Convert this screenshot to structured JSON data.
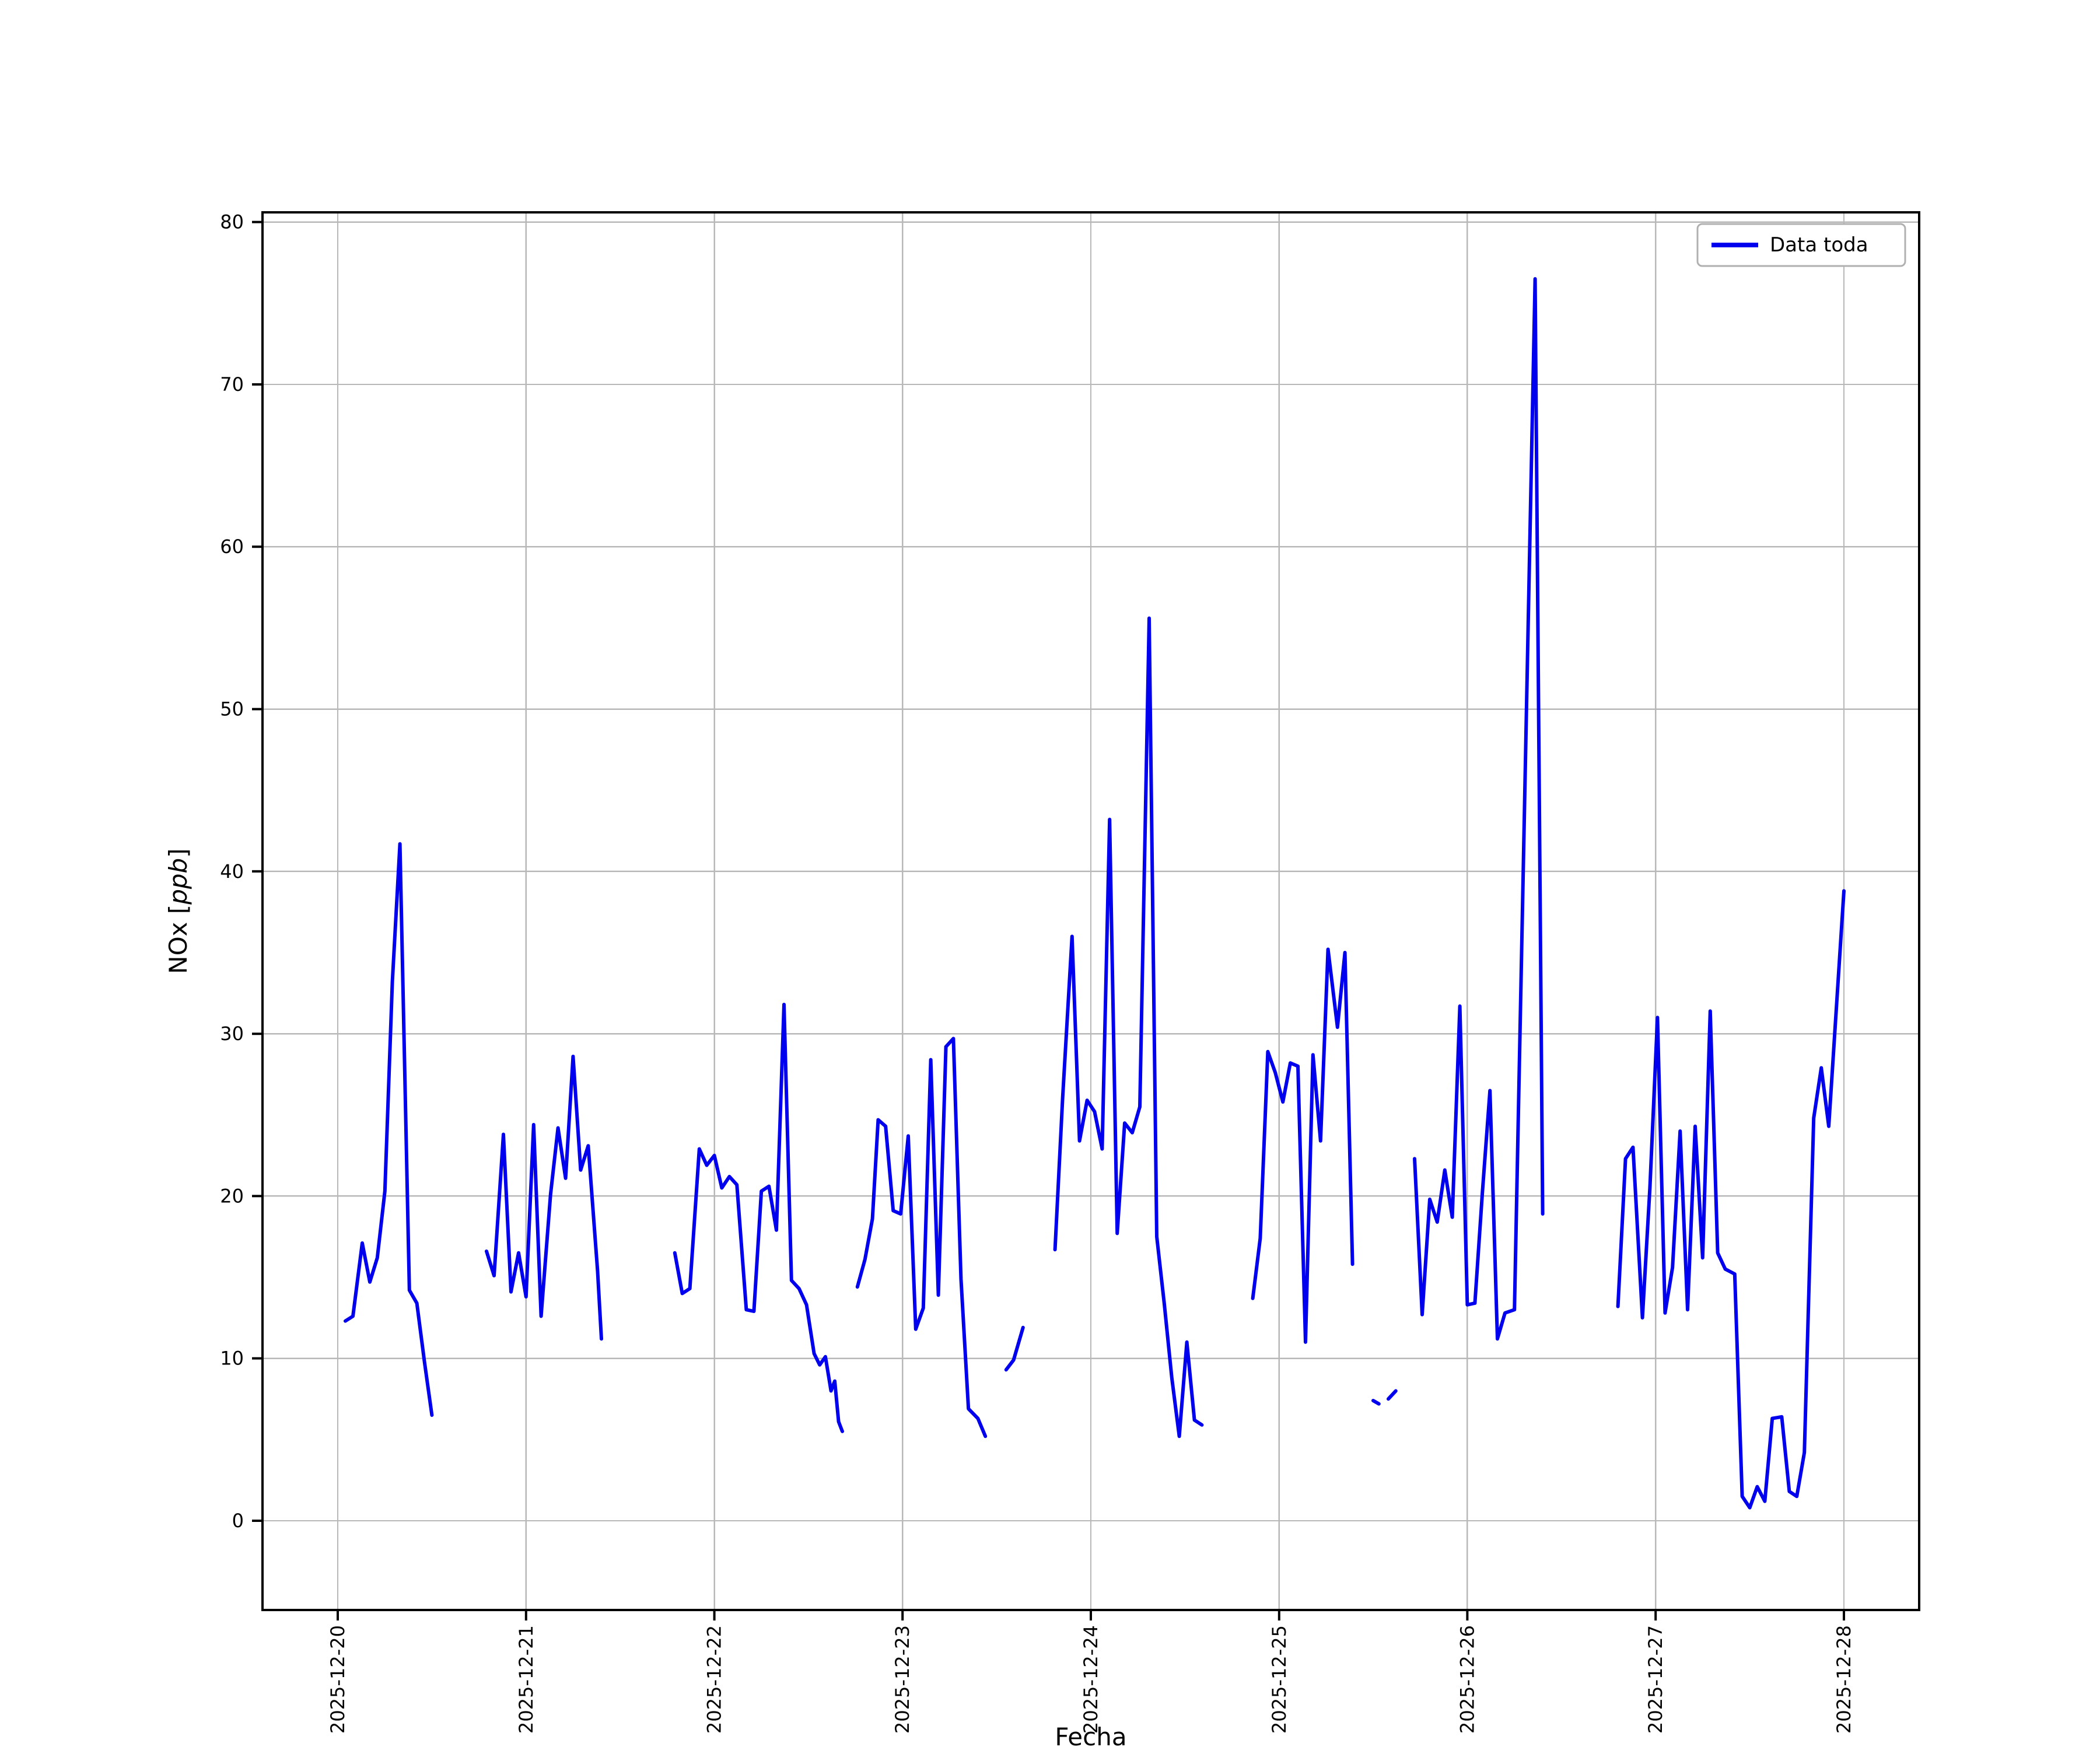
{
  "figure": {
    "background": "#ffffff",
    "frame_color": "#000000"
  },
  "chart_data": {
    "type": "line",
    "title": "",
    "xlabel": "Fecha",
    "ylabel": {
      "prefix": "NOx [",
      "unit": "ppb",
      "suffix": "]",
      "unit_style": "italic"
    },
    "x_unit": "days since 2025-12-20 00:00",
    "xlim": [
      -0.4,
      8.4
    ],
    "ylim": [
      -5.5,
      80.6
    ],
    "x_ticks": [
      {
        "pos": 0,
        "label": "2025-12-20"
      },
      {
        "pos": 1,
        "label": "2025-12-21"
      },
      {
        "pos": 2,
        "label": "2025-12-22"
      },
      {
        "pos": 3,
        "label": "2025-12-23"
      },
      {
        "pos": 4,
        "label": "2025-12-24"
      },
      {
        "pos": 5,
        "label": "2025-12-25"
      },
      {
        "pos": 6,
        "label": "2025-12-26"
      },
      {
        "pos": 7,
        "label": "2025-12-27"
      },
      {
        "pos": 8,
        "label": "2025-12-28"
      }
    ],
    "y_ticks": [
      0,
      10,
      20,
      30,
      40,
      50,
      60,
      70,
      80
    ],
    "grid": {
      "show": true,
      "color": "#b8b8b8"
    },
    "legend": {
      "label": "Data toda",
      "position": "upper-right",
      "border_color": "#b0b0b0",
      "background": "#ffffff"
    },
    "series": [
      {
        "name": "Data toda",
        "color": "#0000ee",
        "line_width": 3,
        "segments": [
          [
            [
              0.04,
              12.3
            ],
            [
              0.08,
              12.6
            ],
            [
              0.13,
              17.1
            ],
            [
              0.17,
              14.7
            ],
            [
              0.21,
              16.2
            ],
            [
              0.25,
              20.3
            ],
            [
              0.29,
              33.2
            ],
            [
              0.33,
              41.7
            ],
            [
              0.38,
              14.2
            ],
            [
              0.42,
              13.4
            ],
            [
              0.46,
              9.8
            ],
            [
              0.5,
              6.5
            ]
          ],
          [
            [
              0.79,
              16.6
            ],
            [
              0.83,
              15.1
            ],
            [
              0.88,
              23.8
            ],
            [
              0.92,
              14.1
            ],
            [
              0.96,
              16.5
            ],
            [
              1.0,
              13.8
            ],
            [
              1.04,
              24.4
            ],
            [
              1.08,
              12.6
            ],
            [
              1.13,
              20.1
            ],
            [
              1.17,
              24.2
            ],
            [
              1.21,
              21.1
            ],
            [
              1.25,
              28.6
            ],
            [
              1.29,
              21.6
            ],
            [
              1.33,
              23.1
            ],
            [
              1.38,
              15.4
            ],
            [
              1.4,
              11.2
            ]
          ],
          [
            [
              1.79,
              16.5
            ],
            [
              1.83,
              14.0
            ],
            [
              1.87,
              14.3
            ],
            [
              1.92,
              22.9
            ],
            [
              1.96,
              21.9
            ],
            [
              2.0,
              22.5
            ],
            [
              2.04,
              20.5
            ],
            [
              2.08,
              21.2
            ],
            [
              2.12,
              20.7
            ],
            [
              2.17,
              13.0
            ],
            [
              2.21,
              12.9
            ],
            [
              2.25,
              20.3
            ],
            [
              2.29,
              20.6
            ],
            [
              2.33,
              17.9
            ],
            [
              2.37,
              31.8
            ],
            [
              2.41,
              14.8
            ],
            [
              2.45,
              14.3
            ],
            [
              2.49,
              13.3
            ],
            [
              2.53,
              10.3
            ],
            [
              2.56,
              9.6
            ],
            [
              2.59,
              10.1
            ],
            [
              2.62,
              8.0
            ],
            [
              2.64,
              8.6
            ],
            [
              2.66,
              6.1
            ],
            [
              2.68,
              5.5
            ]
          ],
          [
            [
              2.76,
              14.4
            ],
            [
              2.8,
              16.1
            ],
            [
              2.84,
              18.6
            ],
            [
              2.87,
              24.7
            ],
            [
              2.91,
              24.3
            ],
            [
              2.95,
              19.1
            ],
            [
              2.99,
              18.9
            ],
            [
              3.03,
              23.7
            ],
            [
              3.07,
              11.8
            ],
            [
              3.11,
              13.1
            ],
            [
              3.15,
              28.4
            ],
            [
              3.19,
              13.9
            ],
            [
              3.23,
              29.2
            ],
            [
              3.27,
              29.7
            ],
            [
              3.31,
              14.9
            ],
            [
              3.35,
              6.9
            ],
            [
              3.4,
              6.3
            ],
            [
              3.44,
              5.2
            ]
          ],
          [
            [
              3.55,
              9.3
            ],
            [
              3.59,
              9.9
            ],
            [
              3.64,
              11.9
            ]
          ],
          [
            [
              3.81,
              16.7
            ],
            [
              3.85,
              26.0
            ],
            [
              3.9,
              36.0
            ],
            [
              3.94,
              23.4
            ],
            [
              3.98,
              25.9
            ],
            [
              4.02,
              25.2
            ],
            [
              4.06,
              22.9
            ],
            [
              4.1,
              43.2
            ],
            [
              4.14,
              17.7
            ],
            [
              4.18,
              24.5
            ],
            [
              4.22,
              23.9
            ],
            [
              4.26,
              25.5
            ],
            [
              4.31,
              55.6
            ],
            [
              4.35,
              17.5
            ],
            [
              4.39,
              13.4
            ],
            [
              4.43,
              8.8
            ],
            [
              4.47,
              5.2
            ],
            [
              4.51,
              11.0
            ],
            [
              4.55,
              6.2
            ],
            [
              4.59,
              5.9
            ]
          ],
          [
            [
              4.86,
              13.7
            ],
            [
              4.9,
              17.4
            ],
            [
              4.94,
              28.9
            ],
            [
              4.98,
              27.6
            ],
            [
              5.02,
              25.8
            ],
            [
              5.06,
              28.2
            ],
            [
              5.1,
              28.0
            ],
            [
              5.14,
              11.0
            ],
            [
              5.18,
              28.7
            ],
            [
              5.22,
              23.4
            ],
            [
              5.26,
              35.2
            ],
            [
              5.31,
              30.4
            ],
            [
              5.35,
              35.0
            ],
            [
              5.39,
              15.8
            ]
          ],
          [
            [
              5.5,
              7.4
            ],
            [
              5.53,
              7.2
            ]
          ],
          [
            [
              5.58,
              7.5
            ],
            [
              5.62,
              8.0
            ]
          ],
          [
            [
              5.72,
              22.3
            ],
            [
              5.76,
              12.7
            ],
            [
              5.8,
              19.8
            ],
            [
              5.84,
              18.4
            ],
            [
              5.88,
              21.6
            ],
            [
              5.92,
              18.7
            ],
            [
              5.96,
              31.7
            ],
            [
              6.0,
              13.3
            ],
            [
              6.04,
              13.4
            ],
            [
              6.08,
              20.2
            ],
            [
              6.12,
              26.5
            ],
            [
              6.16,
              11.2
            ],
            [
              6.2,
              12.8
            ],
            [
              6.25,
              13.0
            ],
            [
              6.36,
              76.5
            ],
            [
              6.4,
              18.9
            ]
          ],
          [
            [
              6.8,
              13.2
            ],
            [
              6.84,
              22.3
            ],
            [
              6.88,
              23.0
            ],
            [
              6.93,
              12.5
            ],
            [
              6.97,
              20.5
            ],
            [
              7.01,
              31.0
            ],
            [
              7.05,
              12.8
            ],
            [
              7.09,
              15.6
            ],
            [
              7.13,
              24.0
            ],
            [
              7.17,
              13.0
            ],
            [
              7.21,
              24.3
            ],
            [
              7.25,
              16.2
            ],
            [
              7.29,
              31.4
            ],
            [
              7.33,
              16.5
            ],
            [
              7.37,
              15.5
            ],
            [
              7.42,
              15.2
            ],
            [
              7.46,
              1.5
            ],
            [
              7.5,
              0.8
            ],
            [
              7.54,
              2.1
            ],
            [
              7.58,
              1.2
            ],
            [
              7.62,
              6.3
            ],
            [
              7.67,
              6.4
            ],
            [
              7.71,
              1.8
            ],
            [
              7.75,
              1.5
            ],
            [
              7.79,
              4.2
            ],
            [
              7.84,
              24.8
            ],
            [
              7.88,
              27.9
            ],
            [
              7.92,
              24.3
            ],
            [
              8.0,
              38.8
            ]
          ]
        ]
      }
    ]
  }
}
